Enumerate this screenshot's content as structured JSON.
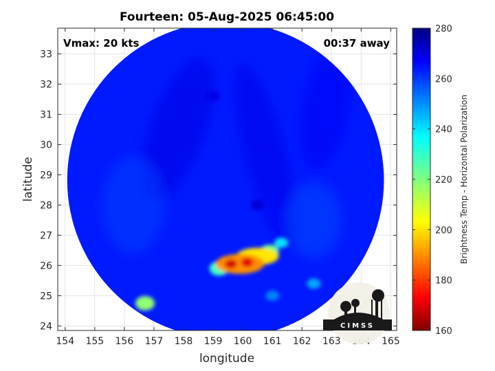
{
  "chart_data": {
    "type": "heatmap",
    "title": "Fourteen: 05-Aug-2025 06:45:00",
    "xlabel": "longitude",
    "ylabel": "latitude",
    "xlim": [
      153.75,
      165.2
    ],
    "ylim": [
      23.85,
      33.85
    ],
    "xticks": [
      154,
      155,
      156,
      157,
      158,
      159,
      160,
      161,
      162,
      163,
      164,
      165
    ],
    "yticks": [
      24,
      25,
      26,
      27,
      28,
      29,
      30,
      31,
      32,
      33
    ],
    "grid": true,
    "annotations": {
      "left": "Vmax: 20 kts",
      "right": "00:37 away"
    },
    "swath": {
      "shape": "circle",
      "center": [
        159.42,
        28.82
      ],
      "radius_lon": 5.35,
      "background_value": 262
    },
    "colorbar": {
      "label": "Brightness Temp - Horizontal Polarization",
      "range": [
        160,
        280
      ],
      "ticks": [
        160,
        180,
        200,
        220,
        240,
        260,
        280
      ],
      "colormap": "jet"
    },
    "features": [
      {
        "lon": 159.6,
        "lat": 26.05,
        "value": 170
      },
      {
        "lon": 160.15,
        "lat": 26.1,
        "value": 172
      },
      {
        "lon": 159.9,
        "lat": 26.05,
        "value": 192
      },
      {
        "lon": 160.5,
        "lat": 26.3,
        "value": 202
      },
      {
        "lon": 160.9,
        "lat": 26.45,
        "value": 222
      },
      {
        "lon": 159.2,
        "lat": 25.9,
        "value": 228
      },
      {
        "lon": 161.3,
        "lat": 26.75,
        "value": 238
      },
      {
        "lon": 156.7,
        "lat": 24.75,
        "value": 218
      },
      {
        "lon": 162.4,
        "lat": 25.4,
        "value": 245
      },
      {
        "lon": 161.0,
        "lat": 25.0,
        "value": 250
      },
      {
        "lon": 159.0,
        "lat": 31.6,
        "value": 268
      },
      {
        "lon": 160.5,
        "lat": 28.0,
        "value": 270
      }
    ]
  },
  "logo": {
    "text": "CIMSS"
  }
}
